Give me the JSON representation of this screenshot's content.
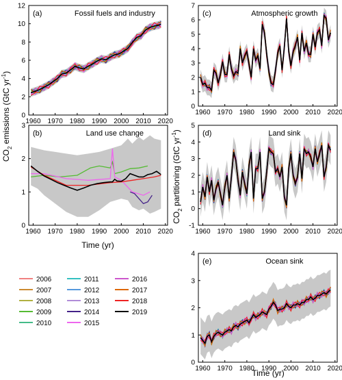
{
  "figure": {
    "ylabel_left_main": "CO",
    "ylabel_left_sub": "2",
    "ylabel_left_rest": " emissions (GtC yr",
    "ylabel_left_sup": "-1",
    "ylabel_left_end": ")",
    "ylabel_right_main": "CO",
    "ylabel_right_sub": "2",
    "ylabel_right_rest": " partitioning (GtC yr",
    "ylabel_right_sup": "-1",
    "ylabel_right_end": ")",
    "xlabel_left": "Time (yr)",
    "xlabel_right": "Time (yr)"
  },
  "legend": [
    {
      "label": "2006",
      "color": "#f08080"
    },
    {
      "label": "2007",
      "color": "#cc8a30"
    },
    {
      "label": "2008",
      "color": "#b0b040"
    },
    {
      "label": "2009",
      "color": "#55bb33"
    },
    {
      "label": "2010",
      "color": "#44bb88"
    },
    {
      "label": "2011",
      "color": "#33c0c0"
    },
    {
      "label": "2012",
      "color": "#5599dd"
    },
    {
      "label": "2013",
      "color": "#b08cd8"
    },
    {
      "label": "2014",
      "color": "#442288"
    },
    {
      "label": "2015",
      "color": "#ee66ee"
    },
    {
      "label": "2016",
      "color": "#cc55cc"
    },
    {
      "label": "2017",
      "color": "#dd6600"
    },
    {
      "label": "2018",
      "color": "#ee2222"
    },
    {
      "label": "2019",
      "color": "#000000"
    }
  ],
  "chart_data": [
    {
      "id": "a",
      "panel_label": "(a)",
      "title": "Fossil fuels and industry",
      "type": "line",
      "xlim": [
        1958,
        2021
      ],
      "ylim": [
        0,
        12
      ],
      "xticks": [
        1960,
        1970,
        1980,
        1990,
        2000,
        2010,
        2020
      ],
      "yticks": [
        0,
        2,
        4,
        6,
        8,
        10,
        12
      ],
      "x": [
        1959,
        1961,
        1963,
        1965,
        1967,
        1969,
        1971,
        1973,
        1975,
        1977,
        1979,
        1981,
        1983,
        1985,
        1987,
        1989,
        1991,
        1993,
        1995,
        1997,
        1999,
        2001,
        2003,
        2005,
        2007,
        2009,
        2011,
        2013,
        2015,
        2017,
        2018
      ],
      "y": [
        2.45,
        2.6,
        2.8,
        3.05,
        3.3,
        3.65,
        4.0,
        4.5,
        4.6,
        4.95,
        5.35,
        5.15,
        5.05,
        5.35,
        5.6,
        5.9,
        6.15,
        6.05,
        6.35,
        6.6,
        6.7,
        7.0,
        7.3,
        7.95,
        8.5,
        8.7,
        9.3,
        9.6,
        9.75,
        9.85,
        9.95
      ],
      "band_halfwidth": 0.45
    },
    {
      "id": "b",
      "panel_label": "(b)",
      "title": "Land use change",
      "type": "line",
      "xlim": [
        1958,
        2021
      ],
      "ylim": [
        0,
        3
      ],
      "xticks": [
        1960,
        1970,
        1980,
        1990,
        2000,
        2010,
        2020
      ],
      "yticks": [
        0,
        1,
        2,
        3
      ],
      "x": [
        1959,
        1962,
        1965,
        1968,
        1971,
        1974,
        1977,
        1980,
        1983,
        1986,
        1989,
        1992,
        1995,
        1996,
        1997,
        1998,
        2000,
        2002,
        2004,
        2006,
        2008,
        2010,
        2012,
        2014,
        2016,
        2018
      ],
      "y": [
        1.78,
        1.62,
        1.48,
        1.38,
        1.28,
        1.2,
        1.12,
        1.05,
        1.12,
        1.2,
        1.25,
        1.28,
        1.3,
        1.3,
        1.38,
        1.33,
        1.32,
        1.4,
        1.55,
        1.5,
        1.45,
        1.45,
        1.52,
        1.55,
        1.62,
        1.52
      ],
      "band_x": [
        1959,
        1962,
        1965,
        1970,
        1975,
        1980,
        1985,
        1990,
        1995,
        2000,
        2003,
        2005,
        2008,
        2010,
        2013,
        2015,
        2018
      ],
      "band_low": [
        1.2,
        1.1,
        0.9,
        0.65,
        0.4,
        0.25,
        0.25,
        0.45,
        0.7,
        0.8,
        0.75,
        0.55,
        0.45,
        0.5,
        0.35,
        0.4,
        0.5
      ],
      "band_high": [
        2.35,
        2.3,
        2.25,
        2.2,
        2.15,
        2.1,
        2.15,
        2.2,
        2.3,
        2.4,
        2.6,
        2.45,
        2.65,
        2.55,
        2.7,
        2.6,
        2.55
      ],
      "variants": [
        {
          "color": "#55bb33",
          "x": [
            1959,
            1965,
            1972,
            1980,
            1986,
            1990,
            1995,
            1996,
            1997,
            2000,
            2004,
            2008,
            2012
          ],
          "y": [
            1.45,
            1.5,
            1.45,
            1.5,
            1.72,
            1.78,
            1.72,
            1.9,
            1.55,
            1.6,
            1.7,
            1.72,
            1.78
          ]
        },
        {
          "color": "#ee66ee",
          "x": [
            1959,
            1965,
            1975,
            1985,
            1995,
            1996,
            1997,
            2000,
            2005,
            2010,
            2013
          ],
          "y": [
            1.55,
            1.55,
            1.4,
            1.35,
            1.4,
            2.3,
            1.45,
            1.35,
            1.0,
            0.9,
            1.0
          ]
        },
        {
          "color": "#442288",
          "x": [
            2004,
            2006,
            2008,
            2010,
            2012,
            2014
          ],
          "y": [
            1.0,
            0.95,
            0.8,
            0.65,
            0.7,
            0.9
          ]
        },
        {
          "color": "#ee2222",
          "x": [
            1959,
            1965,
            1975,
            1985,
            1995,
            2000,
            2005,
            2010,
            2015,
            2018
          ],
          "y": [
            1.75,
            1.5,
            1.2,
            1.2,
            1.28,
            1.3,
            1.35,
            1.4,
            1.45,
            1.5
          ]
        }
      ]
    },
    {
      "id": "c",
      "panel_label": "(c)",
      "title": "Atmospheric growth",
      "type": "line",
      "xlim": [
        1958,
        2021
      ],
      "ylim": [
        0,
        7
      ],
      "xticks": [
        1960,
        1970,
        1980,
        1990,
        2000,
        2010,
        2020
      ],
      "yticks": [
        0,
        1,
        2,
        3,
        4,
        5,
        6,
        7
      ],
      "x": [
        1959,
        1960,
        1961,
        1962,
        1963,
        1964,
        1965,
        1966,
        1967,
        1968,
        1969,
        1970,
        1971,
        1972,
        1973,
        1974,
        1975,
        1976,
        1977,
        1978,
        1979,
        1980,
        1981,
        1982,
        1983,
        1984,
        1985,
        1986,
        1987,
        1988,
        1989,
        1990,
        1991,
        1992,
        1993,
        1994,
        1995,
        1996,
        1997,
        1998,
        1999,
        2000,
        2001,
        2002,
        2003,
        2004,
        2005,
        2006,
        2007,
        2008,
        2009,
        2010,
        2011,
        2012,
        2013,
        2014,
        2015,
        2016,
        2017,
        2018
      ],
      "y": [
        2.0,
        1.5,
        1.6,
        1.3,
        1.3,
        1.1,
        2.5,
        2.3,
        1.6,
        2.2,
        3.1,
        2.2,
        2.2,
        3.6,
        2.6,
        2.1,
        2.4,
        2.3,
        4.0,
        3.0,
        3.5,
        3.8,
        2.9,
        2.0,
        4.0,
        3.2,
        3.5,
        2.6,
        5.7,
        5.1,
        3.6,
        2.4,
        1.6,
        1.5,
        2.5,
        3.7,
        4.2,
        2.5,
        4.1,
        6.1,
        3.8,
        2.8,
        3.8,
        4.2,
        4.8,
        3.2,
        5.1,
        3.8,
        4.4,
        3.6,
        3.6,
        5.0,
        4.1,
        5.1,
        5.3,
        4.2,
        6.3,
        6.1,
        4.6,
        5.1
      ],
      "band_halfwidth": 0.55
    },
    {
      "id": "d",
      "panel_label": "(d)",
      "title": "Land sink",
      "type": "line",
      "xlim": [
        1958,
        2021
      ],
      "ylim": [
        -1,
        5
      ],
      "xticks": [
        1960,
        1970,
        1980,
        1990,
        2000,
        2010,
        2020
      ],
      "yticks": [
        -1,
        0,
        1,
        2,
        3,
        4,
        5
      ],
      "x": [
        1959,
        1960,
        1961,
        1962,
        1963,
        1964,
        1965,
        1966,
        1967,
        1968,
        1969,
        1970,
        1971,
        1972,
        1973,
        1974,
        1975,
        1976,
        1977,
        1978,
        1979,
        1980,
        1981,
        1982,
        1983,
        1984,
        1985,
        1986,
        1987,
        1988,
        1989,
        1990,
        1991,
        1992,
        1993,
        1994,
        1995,
        1996,
        1997,
        1998,
        1999,
        2000,
        2001,
        2002,
        2003,
        2004,
        2005,
        2006,
        2007,
        2008,
        2009,
        2010,
        2011,
        2012,
        2013,
        2014,
        2015,
        2016,
        2017,
        2018
      ],
      "y": [
        0.4,
        1.3,
        0.7,
        1.9,
        1.0,
        1.7,
        0.5,
        1.2,
        1.6,
        0.9,
        0.2,
        1.3,
        2.0,
        0.6,
        1.9,
        3.4,
        2.9,
        1.7,
        0.8,
        2.2,
        1.5,
        0.9,
        2.6,
        3.4,
        0.6,
        2.4,
        2.4,
        3.4,
        0.6,
        1.0,
        2.2,
        3.6,
        3.4,
        3.3,
        2.2,
        2.4,
        1.9,
        2.5,
        0.7,
        0.2,
        2.4,
        3.3,
        2.0,
        1.5,
        1.9,
        3.3,
        1.8,
        3.6,
        3.3,
        3.4,
        3.1,
        2.5,
        3.6,
        2.8,
        3.3,
        3.8,
        1.9,
        2.5,
        3.8,
        3.5
      ],
      "band_halfwidth": 0.9
    },
    {
      "id": "e",
      "panel_label": "(e)",
      "title": "Ocean sink",
      "type": "line",
      "xlim": [
        1958,
        2021
      ],
      "ylim": [
        0,
        4
      ],
      "xticks": [
        1960,
        1970,
        1980,
        1990,
        2000,
        2010,
        2020
      ],
      "yticks": [
        0,
        1,
        2,
        3,
        4
      ],
      "x": [
        1959,
        1960,
        1961,
        1962,
        1963,
        1964,
        1965,
        1966,
        1967,
        1968,
        1969,
        1970,
        1971,
        1972,
        1973,
        1974,
        1975,
        1976,
        1977,
        1978,
        1979,
        1980,
        1981,
        1982,
        1983,
        1984,
        1985,
        1986,
        1987,
        1988,
        1989,
        1990,
        1991,
        1992,
        1993,
        1994,
        1995,
        1996,
        1997,
        1998,
        1999,
        2000,
        2001,
        2002,
        2003,
        2004,
        2005,
        2006,
        2007,
        2008,
        2009,
        2010,
        2011,
        2012,
        2013,
        2014,
        2015,
        2016,
        2017,
        2018
      ],
      "y": [
        0.9,
        0.8,
        0.7,
        0.95,
        1.0,
        0.75,
        0.95,
        1.05,
        1.1,
        1.05,
        1.0,
        1.1,
        1.15,
        1.2,
        1.15,
        1.3,
        1.35,
        1.3,
        1.4,
        1.45,
        1.5,
        1.55,
        1.45,
        1.6,
        1.75,
        1.65,
        1.7,
        1.75,
        1.85,
        1.8,
        1.75,
        1.95,
        2.05,
        2.2,
        2.1,
        1.9,
        1.95,
        1.95,
        2.0,
        2.15,
        2.05,
        2.0,
        2.1,
        2.1,
        2.15,
        2.1,
        2.2,
        2.2,
        2.3,
        2.3,
        2.4,
        2.3,
        2.35,
        2.45,
        2.45,
        2.5,
        2.55,
        2.5,
        2.6,
        2.65
      ],
      "band_low_offset": 0.6,
      "band_high_offset": 0.75
    }
  ]
}
